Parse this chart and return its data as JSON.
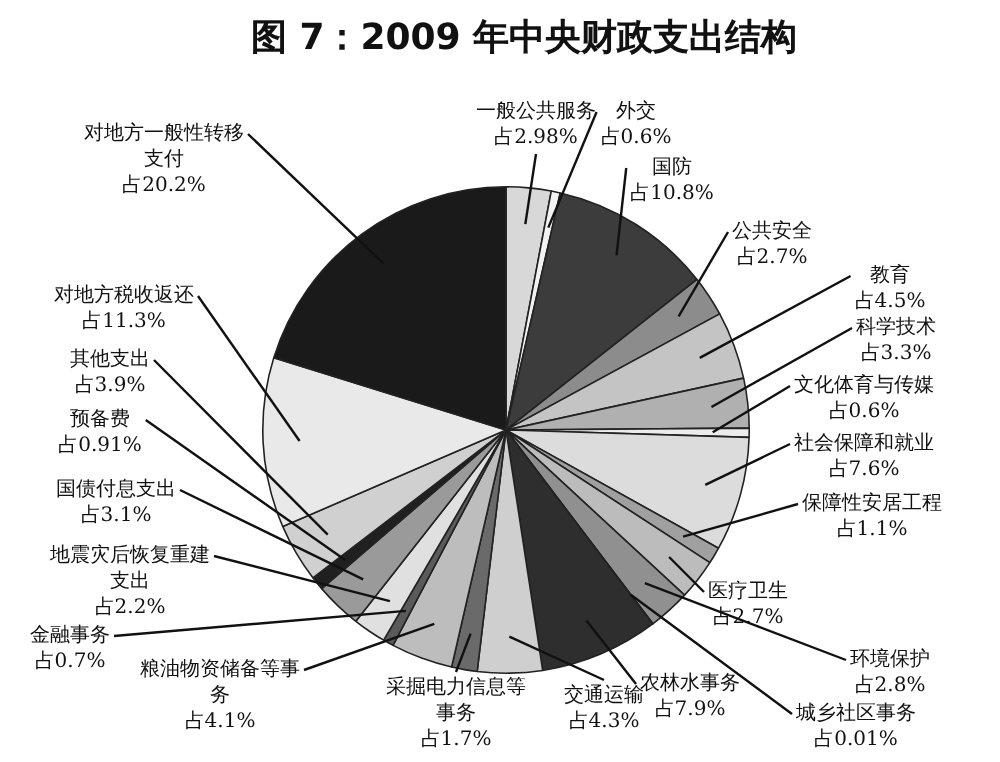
{
  "chart_data": {
    "type": "pie",
    "title": "图 7：2009 年中央财政支出结构",
    "categories": [
      "一般公共服务",
      "外交",
      "国防",
      "公共安全",
      "教育",
      "科学技术",
      "文化体育与传媒",
      "社会保障和就业",
      "保障性安居工程",
      "医疗卫生",
      "环境保护",
      "城乡社区事务",
      "农林水事务",
      "交通运输",
      "采掘电力信息等事务",
      "粮油物资储备等事务",
      "金融事务",
      "地震灾后恢复重建支出",
      "国债付息支出",
      "预备费",
      "其他支出",
      "对地方税收返还",
      "对地方一般性转移支付"
    ],
    "values": [
      2.98,
      0.6,
      10.8,
      2.7,
      4.5,
      3.3,
      0.6,
      7.6,
      1.1,
      2.7,
      2.8,
      0.01,
      7.9,
      4.3,
      1.7,
      4.1,
      0.7,
      2.2,
      3.1,
      0.91,
      3.9,
      11.3,
      20.2
    ],
    "value_labels": [
      "占2.98%",
      "占0.6%",
      "占10.8%",
      "占2.7%",
      "占4.5%",
      "占3.3%",
      "占0.6%",
      "占7.6%",
      "占1.1%",
      "占2.7%",
      "占2.8%",
      "占0.01%",
      "占7.9%",
      "占4.3%",
      "占1.7%",
      "占4.1%",
      "占0.7%",
      "占2.2%",
      "占3.1%",
      "占0.91%",
      "占3.9%",
      "占11.3%",
      "占20.2%"
    ],
    "colors": [
      "#d8d8d8",
      "#f2f2f2",
      "#3c3c3c",
      "#8c8c8c",
      "#c4c4c4",
      "#b0b0b0",
      "#ececec",
      "#dcdcdc",
      "#a0a0a0",
      "#bcbcbc",
      "#909090",
      "#808080",
      "#2e2e2e",
      "#cfcfcf",
      "#6a6a6a",
      "#bdbdbd",
      "#5a5a5a",
      "#e0e0e0",
      "#9a9a9a",
      "#202020",
      "#d0d0d0",
      "#e9e9e9",
      "#1a1a1a"
    ],
    "legend": false
  }
}
